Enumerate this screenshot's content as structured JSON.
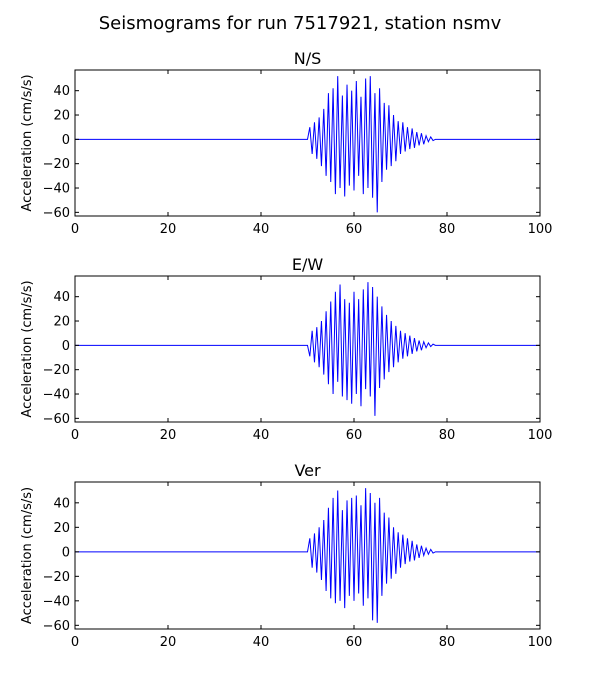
{
  "figure_title": "Seismograms for run 7517921, station nsmv",
  "chart_data": [
    {
      "type": "line",
      "title": "N/S",
      "xlabel": "",
      "ylabel": "Acceleration (cm/s/s)",
      "xlim": [
        0,
        100
      ],
      "ylim": [
        -63,
        57
      ],
      "xticks": [
        0,
        20,
        40,
        60,
        80,
        100
      ],
      "yticks": [
        -60,
        -40,
        -20,
        0,
        20,
        40
      ],
      "grid": false,
      "color": "#0000ff",
      "series": [
        {
          "x": [
            0,
            50,
            50.5,
            51,
            51.5,
            52,
            52.5,
            53,
            53.5,
            54,
            54.5,
            55,
            55.5,
            56,
            56.5,
            57,
            57.5,
            58,
            58.5,
            59,
            59.5,
            60,
            60.5,
            61,
            61.5,
            62,
            62.5,
            63,
            63.5,
            64,
            64.5,
            65,
            65.5,
            66,
            66.5,
            67,
            67.5,
            68,
            68.5,
            69,
            69.5,
            70,
            70.5,
            71,
            71.5,
            72,
            72.5,
            73,
            73.5,
            74,
            74.5,
            75,
            75.5,
            76,
            76.5,
            77,
            77.5,
            100
          ],
          "y": [
            0,
            0,
            10,
            -12,
            14,
            -16,
            18,
            -22,
            25,
            -30,
            38,
            -35,
            42,
            -45,
            52,
            -40,
            36,
            -47,
            45,
            -38,
            40,
            -42,
            48,
            -30,
            35,
            -45,
            50,
            -40,
            52,
            -48,
            38,
            -60,
            42,
            -35,
            30,
            -25,
            28,
            -22,
            20,
            -18,
            15,
            -12,
            14,
            -10,
            10,
            -8,
            9,
            -7,
            6,
            -5,
            5,
            -4,
            3,
            -2,
            2,
            -1,
            0,
            0
          ]
        }
      ]
    },
    {
      "type": "line",
      "title": "E/W",
      "xlabel": "",
      "ylabel": "Acceleration (cm/s/s)",
      "xlim": [
        0,
        100
      ],
      "ylim": [
        -63,
        57
      ],
      "xticks": [
        0,
        20,
        40,
        60,
        80,
        100
      ],
      "yticks": [
        -60,
        -40,
        -20,
        0,
        20,
        40
      ],
      "grid": false,
      "color": "#0000ff",
      "series": [
        {
          "x": [
            0,
            50,
            50.5,
            51,
            51.5,
            52,
            52.5,
            53,
            53.5,
            54,
            54.5,
            55,
            55.5,
            56,
            56.5,
            57,
            57.5,
            58,
            58.5,
            59,
            59.5,
            60,
            60.5,
            61,
            61.5,
            62,
            62.5,
            63,
            63.5,
            64,
            64.5,
            65,
            65.5,
            66,
            66.5,
            67,
            67.5,
            68,
            68.5,
            69,
            69.5,
            70,
            70.5,
            71,
            71.5,
            72,
            72.5,
            73,
            73.5,
            74,
            74.5,
            75,
            75.5,
            76,
            76.5,
            77,
            77.5,
            100
          ],
          "y": [
            0,
            0,
            -9,
            12,
            -14,
            15,
            -18,
            20,
            -24,
            28,
            -32,
            36,
            -40,
            44,
            -30,
            50,
            -42,
            38,
            -45,
            35,
            -48,
            44,
            -40,
            38,
            -50,
            46,
            -36,
            52,
            -42,
            48,
            -58,
            40,
            -35,
            32,
            -28,
            25,
            -22,
            20,
            -18,
            16,
            -14,
            12,
            -11,
            10,
            -9,
            8,
            -7,
            6,
            -5,
            4,
            -4,
            3,
            -2,
            2,
            -1,
            1,
            0,
            0
          ]
        }
      ]
    },
    {
      "type": "line",
      "title": "Ver",
      "xlabel": "",
      "ylabel": "Acceleration (cm/s/s)",
      "xlim": [
        0,
        100
      ],
      "ylim": [
        -63,
        57
      ],
      "xticks": [
        0,
        20,
        40,
        60,
        80,
        100
      ],
      "yticks": [
        -60,
        -40,
        -20,
        0,
        20,
        40
      ],
      "grid": false,
      "color": "#0000ff",
      "series": [
        {
          "x": [
            0,
            50,
            50.5,
            51,
            51.5,
            52,
            52.5,
            53,
            53.5,
            54,
            54.5,
            55,
            55.5,
            56,
            56.5,
            57,
            57.5,
            58,
            58.5,
            59,
            59.5,
            60,
            60.5,
            61,
            61.5,
            62,
            62.5,
            63,
            63.5,
            64,
            64.5,
            65,
            65.5,
            66,
            66.5,
            67,
            67.5,
            68,
            68.5,
            69,
            69.5,
            70,
            70.5,
            71,
            71.5,
            72,
            72.5,
            73,
            73.5,
            74,
            74.5,
            75,
            75.5,
            76,
            76.5,
            77,
            77.5,
            100
          ],
          "y": [
            0,
            0,
            11,
            -13,
            15,
            -17,
            20,
            -23,
            26,
            -32,
            36,
            -38,
            44,
            -42,
            50,
            -40,
            34,
            -46,
            42,
            -36,
            44,
            -40,
            46,
            -34,
            38,
            -44,
            52,
            -38,
            48,
            -56,
            40,
            -58,
            44,
            -36,
            32,
            -26,
            28,
            -22,
            20,
            -18,
            16,
            -13,
            14,
            -10,
            11,
            -8,
            9,
            -7,
            6,
            -5,
            5,
            -3,
            3,
            -2,
            2,
            -1,
            0,
            0
          ]
        }
      ]
    }
  ]
}
